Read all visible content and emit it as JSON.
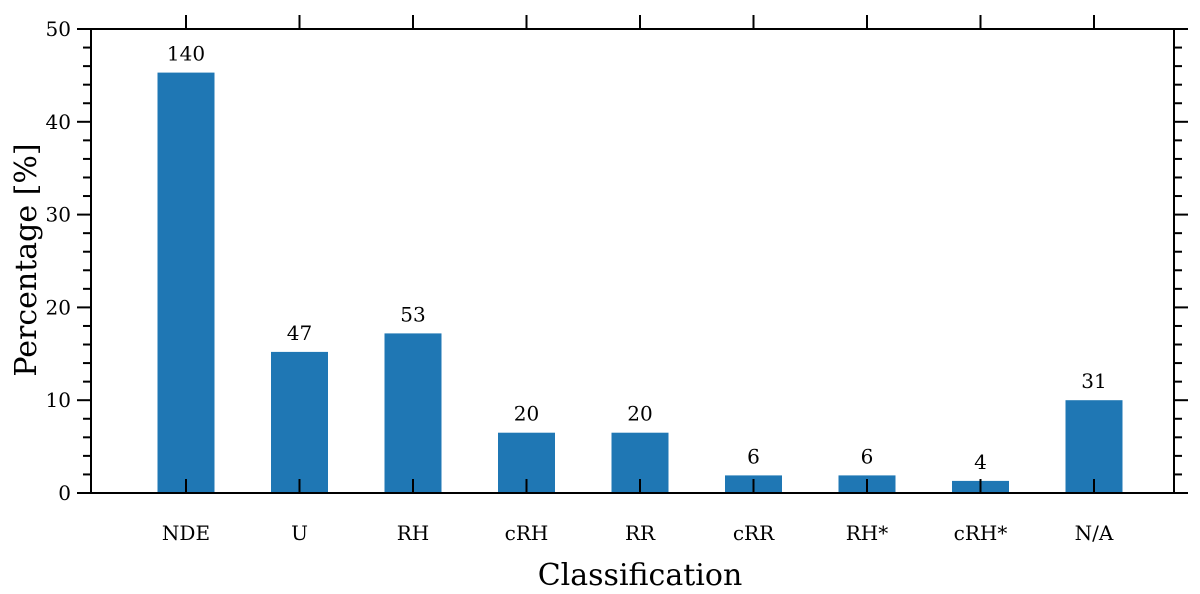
{
  "chart_data": {
    "type": "bar",
    "title": "",
    "xlabel": "Classification",
    "ylabel": "Percentage [%]",
    "ylim": [
      0,
      50
    ],
    "yticks": [
      "0",
      "10",
      "20",
      "30",
      "40",
      "50"
    ],
    "categories": [
      "NDE",
      "U",
      "RH",
      "cRH",
      "RR",
      "cRR",
      "RH*",
      "cRH*",
      "N/A"
    ],
    "values": [
      45.3,
      15.2,
      17.2,
      6.5,
      6.5,
      1.9,
      1.9,
      1.3,
      10.0
    ],
    "data_labels": [
      "140",
      "47",
      "53",
      "20",
      "20",
      "6",
      "6",
      "4",
      "31"
    ],
    "bar_color": "#1f77b4",
    "grid": false,
    "legend": "none"
  }
}
